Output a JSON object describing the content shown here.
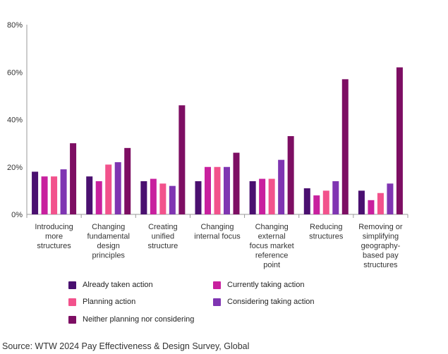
{
  "chart_data": {
    "type": "bar",
    "title": "",
    "xlabel": "",
    "ylabel": "",
    "ylim": [
      0,
      80
    ],
    "yticks": [
      0,
      20,
      40,
      60,
      80
    ],
    "yticks_labels": [
      "0%",
      "20%",
      "40%",
      "60%",
      "80%"
    ],
    "grid": false,
    "legend_position": "bottom",
    "categories": [
      [
        "Introducing",
        "more",
        "structures"
      ],
      [
        "Changing",
        "fundamental",
        "design",
        "principles"
      ],
      [
        "Creating",
        "unified",
        "structure"
      ],
      [
        "Changing",
        "internal focus"
      ],
      [
        "Changing",
        "external",
        "focus market",
        "reference",
        "point"
      ],
      [
        "Reducing",
        "structures"
      ],
      [
        "Removing or",
        "simplifying",
        "geography-",
        "based pay",
        "structures"
      ]
    ],
    "series": [
      {
        "name": "Already taken action",
        "color": "#4a1070",
        "values": [
          18,
          16,
          14,
          14,
          14,
          11,
          10
        ]
      },
      {
        "name": "Currently taking action",
        "color": "#c8209e",
        "values": [
          16,
          14,
          15,
          20,
          15,
          8,
          6
        ]
      },
      {
        "name": "Planning action",
        "color": "#f2528c",
        "values": [
          16,
          21,
          13,
          20,
          15,
          10,
          9
        ]
      },
      {
        "name": "Considering taking action",
        "color": "#7f35b2",
        "values": [
          19,
          22,
          12,
          20,
          23,
          14,
          13
        ]
      },
      {
        "name": "Neither planning nor considering",
        "color": "#7d0e63",
        "values": [
          30,
          28,
          46,
          26,
          33,
          57,
          62
        ]
      }
    ]
  },
  "legend_order": [
    0,
    1,
    2,
    3,
    4
  ],
  "source": "Source: WTW 2024 Pay Effectiveness & Design Survey, Global"
}
